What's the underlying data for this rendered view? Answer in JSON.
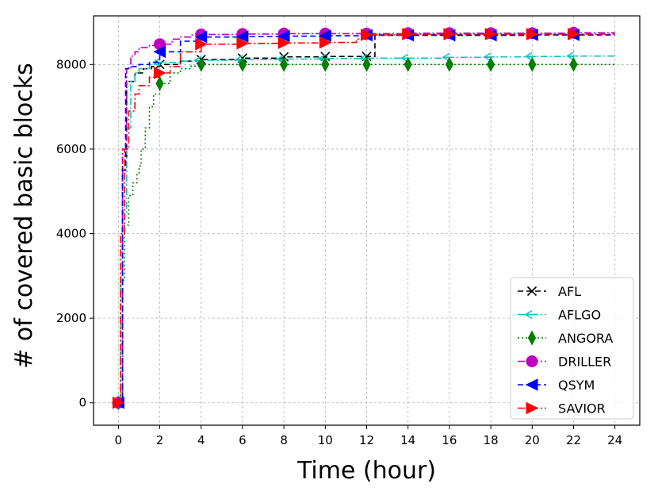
{
  "chart_data": {
    "type": "line",
    "xlabel": "Time (hour)",
    "ylabel": "# of covered basic blocks",
    "xlim": [
      -1.2,
      25.2
    ],
    "ylim": [
      -530,
      9150
    ],
    "xticks": [
      0,
      2,
      4,
      6,
      8,
      10,
      12,
      14,
      16,
      18,
      20,
      22,
      24
    ],
    "yticks": [
      0,
      2000,
      4000,
      6000,
      8000
    ],
    "grid": true,
    "legend_position": "lower-right",
    "series": [
      {
        "name": "AFL",
        "color": "#000000",
        "dash": "7,4",
        "marker": "x",
        "x": [
          0,
          0.2,
          0.4,
          0.8,
          1.2,
          1.6,
          2.0,
          3.0,
          4.0,
          6.0,
          8.0,
          10.0,
          12.0,
          12.4,
          14.0,
          16.0,
          18.0,
          20.0,
          22.0,
          24.0
        ],
        "y": [
          0,
          5800,
          7600,
          7800,
          7900,
          7950,
          8000,
          8080,
          8120,
          8150,
          8180,
          8190,
          8190,
          8700,
          8700,
          8700,
          8700,
          8700,
          8700,
          8700
        ],
        "marker_x": [
          0,
          2,
          4,
          6,
          8,
          10,
          12,
          14,
          16,
          18,
          20,
          22
        ],
        "marker_y": [
          0,
          8000,
          8120,
          8150,
          8180,
          8190,
          8190,
          8700,
          8700,
          8700,
          8700,
          8700
        ]
      },
      {
        "name": "AFLGO",
        "color": "#17bfbf",
        "dash": "9,3,2,3",
        "marker": "tri_left",
        "x": [
          0,
          0.2,
          0.4,
          0.6,
          0.8,
          1.0,
          1.5,
          2.0,
          3.0,
          4.0,
          6.0,
          8.0,
          10.0,
          12.0,
          14.0,
          16.0,
          18.0,
          20.0,
          22.0,
          24.0
        ],
        "y": [
          0,
          4500,
          6500,
          7600,
          7800,
          7900,
          8000,
          8050,
          8080,
          8100,
          8120,
          8130,
          8140,
          8150,
          8150,
          8170,
          8180,
          8190,
          8200,
          8200
        ],
        "marker_x": [
          0,
          2,
          4,
          6,
          8,
          10,
          12,
          14,
          16,
          18,
          20,
          22
        ],
        "marker_y": [
          0,
          8050,
          8100,
          8120,
          8130,
          8140,
          8150,
          8150,
          8170,
          8180,
          8190,
          8200
        ]
      },
      {
        "name": "ANGORA",
        "color": "#007f00",
        "dash": "2,3",
        "marker": "thin_diamond",
        "x": [
          0,
          0.1,
          0.3,
          0.5,
          0.7,
          0.9,
          1.0,
          1.1,
          1.3,
          1.5,
          1.7,
          2.0,
          2.5,
          3.0,
          3.5,
          4.0,
          6.0,
          8.0,
          10.0,
          12.0,
          14.0,
          16.0,
          18.0,
          20.0,
          22.0,
          24.0
        ],
        "y": [
          0,
          2900,
          4200,
          4900,
          5200,
          5400,
          5600,
          6000,
          6500,
          7000,
          7300,
          7550,
          7800,
          7900,
          7960,
          8000,
          8000,
          8000,
          8000,
          8000,
          8000,
          8000,
          8000,
          8000,
          8000,
          8000
        ],
        "marker_x": [
          0,
          2,
          4,
          6,
          8,
          10,
          12,
          14,
          16,
          18,
          20,
          22
        ],
        "marker_y": [
          0,
          7550,
          8000,
          8000,
          8000,
          8000,
          8000,
          8000,
          8000,
          8000,
          8000,
          8000
        ]
      },
      {
        "name": "DRILLER",
        "color": "#bf00bf",
        "dash": "9,3,2,3",
        "marker": "circle",
        "x": [
          0,
          0.2,
          0.4,
          0.6,
          0.8,
          1.0,
          1.5,
          2.0,
          2.6,
          3.0,
          3.5,
          4.0,
          6.0,
          8.0,
          10.0,
          12.0,
          14.0,
          16.0,
          18.0,
          20.0,
          22.0,
          24.0
        ],
        "y": [
          0,
          6000,
          7900,
          8200,
          8300,
          8400,
          8450,
          8480,
          8600,
          8650,
          8700,
          8710,
          8720,
          8730,
          8730,
          8730,
          8740,
          8740,
          8740,
          8740,
          8750,
          8750
        ],
        "marker_x": [
          0,
          2,
          4,
          6,
          8,
          10,
          12,
          14,
          16,
          18,
          20,
          22
        ],
        "marker_y": [
          0,
          8480,
          8710,
          8720,
          8730,
          8730,
          8730,
          8740,
          8740,
          8740,
          8740,
          8750
        ]
      },
      {
        "name": "QSYM",
        "color": "#0000ff",
        "dash": "7,4",
        "marker": "tri_left",
        "x": [
          0,
          0.2,
          0.35,
          0.5,
          1.0,
          1.5,
          2.0,
          3.0,
          4.0,
          6.0,
          8.0,
          10.0,
          12.0,
          14.0,
          16.0,
          18.0,
          20.0,
          22.0,
          24.0
        ],
        "y": [
          0,
          5500,
          7900,
          7950,
          8000,
          8050,
          8300,
          8550,
          8650,
          8660,
          8670,
          8680,
          8690,
          8690,
          8690,
          8690,
          8700,
          8700,
          8700
        ],
        "marker_x": [
          0,
          2,
          4,
          6,
          8,
          10,
          12,
          14,
          16,
          18,
          20,
          22
        ],
        "marker_y": [
          0,
          8300,
          8650,
          8660,
          8670,
          8680,
          8690,
          8690,
          8690,
          8690,
          8700,
          8700
        ]
      },
      {
        "name": "SAVIOR",
        "color": "#ff0000",
        "dash": "9,3,2,3",
        "marker": "tri_right",
        "x": [
          0,
          0.1,
          0.3,
          0.5,
          0.8,
          1.0,
          1.5,
          2.0,
          2.5,
          3.0,
          4.0,
          6.0,
          8.0,
          10.0,
          11.5,
          12.0,
          14.0,
          16.0,
          18.0,
          20.0,
          22.0,
          24.0
        ],
        "y": [
          0,
          4000,
          6000,
          6900,
          7300,
          7500,
          7700,
          7800,
          7950,
          8300,
          8480,
          8500,
          8510,
          8520,
          8600,
          8700,
          8720,
          8720,
          8720,
          8720,
          8720,
          8720
        ],
        "marker_x": [
          0,
          2,
          4,
          6,
          8,
          10,
          12,
          14,
          16,
          18,
          20,
          22
        ],
        "marker_y": [
          0,
          7800,
          8480,
          8500,
          8510,
          8520,
          8700,
          8720,
          8720,
          8720,
          8720,
          8720
        ]
      }
    ]
  }
}
